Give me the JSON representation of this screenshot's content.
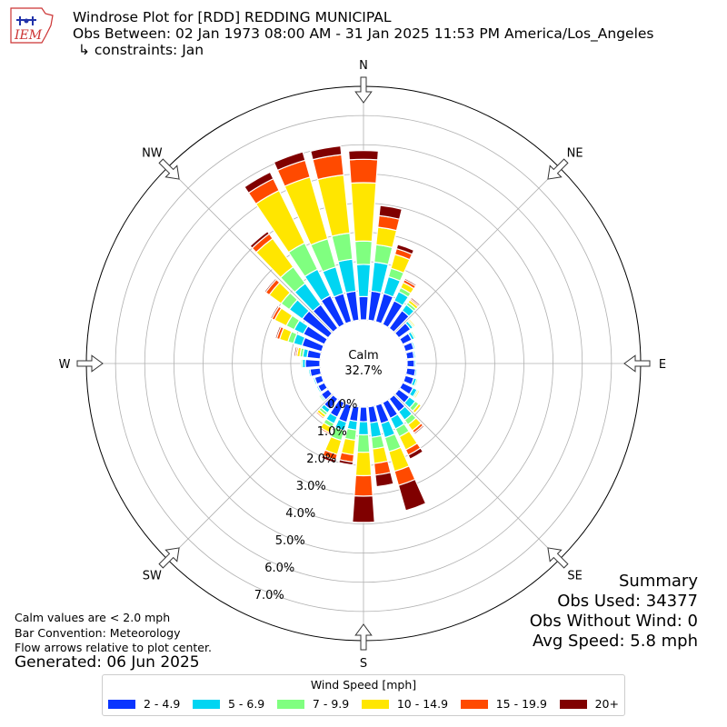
{
  "header": {
    "title": "Windrose Plot for [RDD] REDDING MUNICIPAL",
    "period": "Obs Between: 02 Jan 1973 08:00 AM - 31 Jan 2025 11:53 PM America/Los_Angeles",
    "constraints": "↳ constraints: Jan"
  },
  "logo": {
    "text": "IEM"
  },
  "notes": {
    "calm_def": "Calm values are < 2.0 mph",
    "convention": "Bar Convention: Meteorology",
    "flow": "Flow arrows relative to plot center.",
    "generated": "Generated: 06 Jun 2025"
  },
  "summary": {
    "title": "Summary",
    "obs_used": "Obs Used: 34377",
    "obs_no_wind": "Obs Without Wind: 0",
    "avg_speed": "Avg Speed: 5.8 mph"
  },
  "legend": {
    "title": "Wind Speed [mph]",
    "items": [
      {
        "label": "2 - 4.9",
        "color": "#0a35ff"
      },
      {
        "label": "5 - 6.9",
        "color": "#00d5f2"
      },
      {
        "label": "7 - 9.9",
        "color": "#80ff80"
      },
      {
        "label": "10 - 14.9",
        "color": "#ffe600"
      },
      {
        "label": "15 - 19.9",
        "color": "#ff4a00"
      },
      {
        "label": "20+",
        "color": "#800000"
      }
    ]
  },
  "chart_data": {
    "type": "windrose",
    "calm_label": "Calm",
    "calm_value": "32.7%",
    "radial_ticks": [
      "0.0%",
      "1.0%",
      "2.0%",
      "3.0%",
      "4.0%",
      "5.0%",
      "6.0%",
      "7.0%"
    ],
    "radial_max": 8.0,
    "compass_labels": [
      {
        "label": "N",
        "angle": 0
      },
      {
        "label": "NE",
        "angle": 45
      },
      {
        "label": "E",
        "angle": 90
      },
      {
        "label": "SE",
        "angle": 135
      },
      {
        "label": "S",
        "angle": 180
      },
      {
        "label": "SW",
        "angle": 225
      },
      {
        "label": "W",
        "angle": 270
      },
      {
        "label": "NW",
        "angle": 315
      }
    ],
    "speed_bins": [
      "2 - 4.9",
      "5 - 6.9",
      "7 - 9.9",
      "10 - 14.9",
      "15 - 19.9",
      "20+"
    ],
    "directions": [
      {
        "dir": 0,
        "values": [
          0.8,
          1.1,
          0.8,
          2.0,
          0.8,
          0.3
        ]
      },
      {
        "dir": 10,
        "values": [
          1.0,
          1.0,
          0.6,
          0.6,
          0.4,
          0.35
        ]
      },
      {
        "dir": 20,
        "values": [
          1.0,
          0.6,
          0.3,
          0.5,
          0.2,
          0.15
        ]
      },
      {
        "dir": 30,
        "values": [
          0.9,
          0.35,
          0.15,
          0.2,
          0.1,
          0.05
        ]
      },
      {
        "dir": 40,
        "values": [
          0.75,
          0.25,
          0.1,
          0.1,
          0.05,
          0.05
        ]
      },
      {
        "dir": 50,
        "values": [
          0.5,
          0.1,
          0.05,
          0.05,
          0.0,
          0.0
        ]
      },
      {
        "dir": 60,
        "values": [
          0.35,
          0.1,
          0.05,
          0.0,
          0.0,
          0.0
        ]
      },
      {
        "dir": 70,
        "values": [
          0.3,
          0.05,
          0.0,
          0.0,
          0.0,
          0.0
        ]
      },
      {
        "dir": 80,
        "values": [
          0.25,
          0.05,
          0.0,
          0.0,
          0.0,
          0.0
        ]
      },
      {
        "dir": 90,
        "values": [
          0.25,
          0.05,
          0.0,
          0.0,
          0.0,
          0.0
        ]
      },
      {
        "dir": 100,
        "values": [
          0.3,
          0.05,
          0.0,
          0.0,
          0.0,
          0.0
        ]
      },
      {
        "dir": 110,
        "values": [
          0.3,
          0.1,
          0.05,
          0.0,
          0.0,
          0.0
        ]
      },
      {
        "dir": 120,
        "values": [
          0.4,
          0.15,
          0.05,
          0.05,
          0.0,
          0.0
        ]
      },
      {
        "dir": 130,
        "values": [
          0.45,
          0.25,
          0.15,
          0.1,
          0.0,
          0.0
        ]
      },
      {
        "dir": 140,
        "values": [
          0.55,
          0.35,
          0.2,
          0.25,
          0.1,
          0.05
        ]
      },
      {
        "dir": 150,
        "values": [
          0.6,
          0.4,
          0.3,
          0.5,
          0.2,
          0.15
        ]
      },
      {
        "dir": 160,
        "values": [
          0.65,
          0.5,
          0.5,
          0.7,
          0.5,
          0.9
        ]
      },
      {
        "dir": 170,
        "values": [
          0.55,
          0.5,
          0.4,
          0.5,
          0.4,
          0.4
        ]
      },
      {
        "dir": 180,
        "values": [
          0.5,
          0.45,
          0.6,
          0.8,
          0.7,
          0.9
        ]
      },
      {
        "dir": 190,
        "values": [
          0.5,
          0.3,
          0.35,
          0.5,
          0.25,
          0.1
        ]
      },
      {
        "dir": 200,
        "values": [
          0.6,
          0.3,
          0.35,
          0.5,
          0.2,
          0.1
        ]
      },
      {
        "dir": 210,
        "values": [
          0.55,
          0.25,
          0.15,
          0.2,
          0.05,
          0.0
        ]
      },
      {
        "dir": 220,
        "values": [
          0.45,
          0.15,
          0.1,
          0.1,
          0.05,
          0.0
        ]
      },
      {
        "dir": 230,
        "values": [
          0.3,
          0.05,
          0.05,
          0.0,
          0.0,
          0.0
        ]
      },
      {
        "dir": 240,
        "values": [
          0.25,
          0.05,
          0.0,
          0.0,
          0.0,
          0.0
        ]
      },
      {
        "dir": 250,
        "values": [
          0.25,
          0.05,
          0.0,
          0.0,
          0.0,
          0.0
        ]
      },
      {
        "dir": 260,
        "values": [
          0.35,
          0.05,
          0.0,
          0.0,
          0.0,
          0.0
        ]
      },
      {
        "dir": 270,
        "values": [
          0.5,
          0.1,
          0.05,
          0.0,
          0.0,
          0.0
        ]
      },
      {
        "dir": 280,
        "values": [
          0.45,
          0.15,
          0.1,
          0.1,
          0.05,
          0.05
        ]
      },
      {
        "dir": 290,
        "values": [
          0.7,
          0.3,
          0.2,
          0.3,
          0.1,
          0.05
        ]
      },
      {
        "dir": 300,
        "values": [
          0.8,
          0.35,
          0.3,
          0.45,
          0.1,
          0.05
        ]
      },
      {
        "dir": 310,
        "values": [
          1.1,
          0.55,
          0.35,
          0.5,
          0.15,
          0.05
        ]
      },
      {
        "dir": 320,
        "values": [
          1.0,
          0.9,
          0.7,
          1.2,
          0.2,
          0.1
        ]
      },
      {
        "dir": 330,
        "values": [
          1.1,
          1.0,
          1.0,
          2.0,
          0.45,
          0.25
        ]
      },
      {
        "dir": 340,
        "values": [
          1.0,
          0.95,
          1.0,
          2.2,
          0.6,
          0.3
        ]
      },
      {
        "dir": 350,
        "values": [
          1.0,
          1.1,
          0.9,
          2.0,
          0.7,
          0.3
        ]
      }
    ]
  }
}
